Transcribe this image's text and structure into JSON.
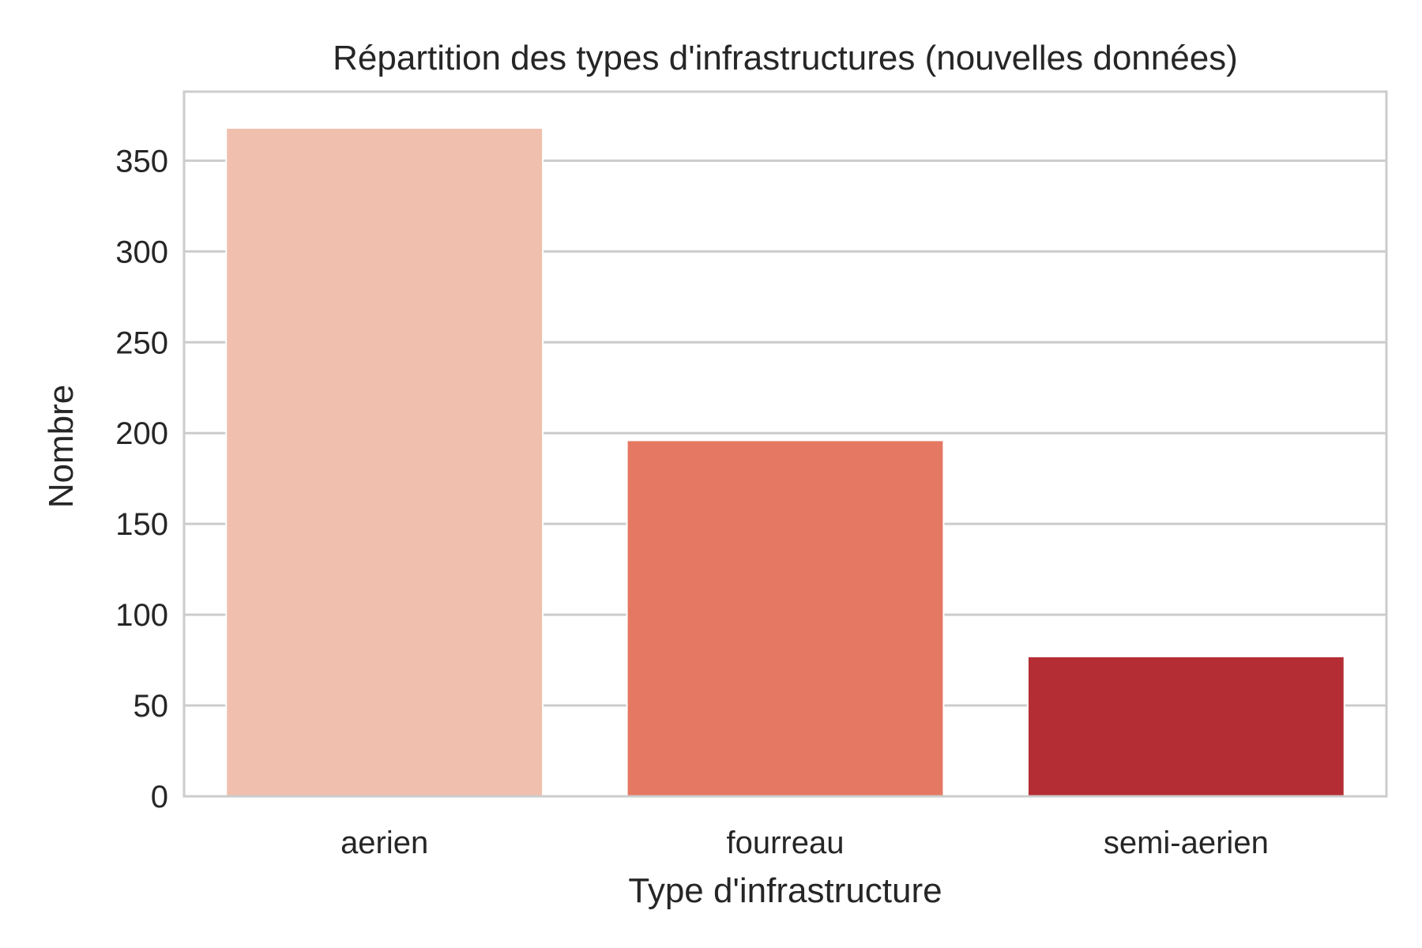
{
  "chart_data": {
    "type": "bar",
    "title": "Répartition des types d'infrastructures (nouvelles données)",
    "xlabel": "Type d'infrastructure",
    "ylabel": "Nombre",
    "categories": [
      "aerien",
      "fourreau",
      "semi-aerien"
    ],
    "values": [
      368,
      196,
      77
    ],
    "bar_colors": [
      "#f0bfad",
      "#e57862",
      "#b52d34"
    ],
    "ylim": [
      0,
      388
    ],
    "yticks": [
      0,
      50,
      100,
      150,
      200,
      250,
      300,
      350
    ],
    "ytick_labels": [
      "0",
      "50",
      "100",
      "150",
      "200",
      "250",
      "300",
      "350"
    ],
    "grid": "horizontal",
    "grid_color": "#cccccc",
    "frame_color": "#cccccc"
  }
}
